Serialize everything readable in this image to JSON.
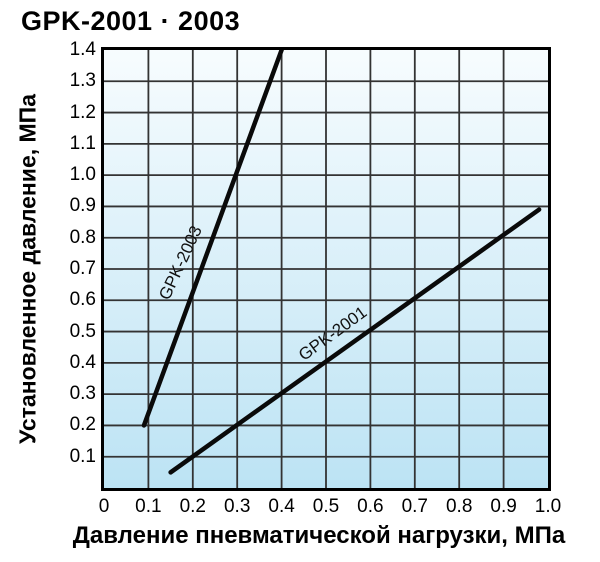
{
  "chart_data": {
    "type": "line",
    "title": "GPK-2001 · 2003",
    "xlabel": "Давление пневматической нагрузки, МПа",
    "ylabel": "Установленное давление, МПа",
    "xlim": [
      0,
      1.0
    ],
    "ylim": [
      0,
      1.4
    ],
    "xticks": [
      "0",
      "0.1",
      "0.2",
      "0.3",
      "0.4",
      "0.5",
      "0.6",
      "0.7",
      "0.8",
      "0.9",
      "1.0"
    ],
    "yticks": [
      "1.4",
      "1.3",
      "1.2",
      "1.1",
      "1.0",
      "0.9",
      "0.8",
      "0.7",
      "0.6",
      "0.5",
      "0.4",
      "0.3",
      "0.2",
      "0.1"
    ],
    "grid": true,
    "legend_position": "labels-on-lines",
    "series": [
      {
        "name": "GPK-2003",
        "points": [
          [
            0.09,
            0.2
          ],
          [
            0.4,
            1.4
          ]
        ]
      },
      {
        "name": "GPK-2001",
        "points": [
          [
            0.15,
            0.05
          ],
          [
            0.98,
            0.89
          ]
        ]
      }
    ],
    "colors": {
      "line": "#0a0a0a",
      "grid": "#333333",
      "border": "#000000",
      "plot_bg_top": "#f7fcfe",
      "plot_bg_bottom": "#bce3f4",
      "text": "#000000"
    }
  }
}
